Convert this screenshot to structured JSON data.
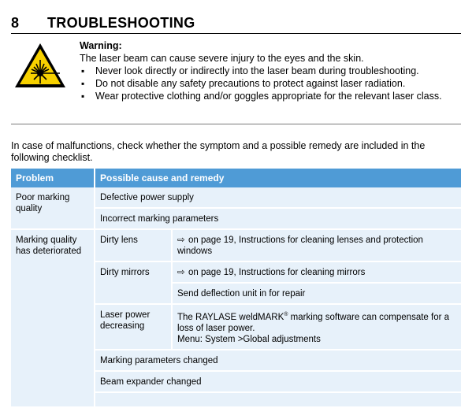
{
  "section": {
    "number": "8",
    "title": "TROUBLESHOOTING"
  },
  "warning": {
    "title": "Warning:",
    "text": "The laser beam can cause severe injury to the eyes and the skin.",
    "bullets": [
      "Never look directly or indirectly into the laser beam during troubleshooting.",
      "Do not disable any safety precautions to protect against laser radiation.",
      "Wear protective clothing and/or goggles appropriate for the relevant laser class."
    ],
    "icon": "laser-hazard-icon"
  },
  "intro": "In case of malfunctions, check whether the symptom and a possible remedy are included in the following checklist.",
  "table": {
    "headers": [
      "Problem",
      "Possible cause and remedy"
    ],
    "header_color": "#4f9bd6",
    "row_color": "#e7f1fa",
    "problems": [
      "Poor marking quality",
      "Marking quality has deteriorated"
    ],
    "rows": [
      {
        "cause": "Defective power supply"
      },
      {
        "cause": "Incorrect marking parameters"
      },
      {
        "cause": "Dirty lens",
        "remedy": "on page 19, Instructions for cleaning lenses and protection windows"
      },
      {
        "cause": "Dirty mirrors",
        "remedy": "on page 19, Instructions for cleaning mirrors"
      },
      {
        "remedy": "Send deflection unit in for repair"
      },
      {
        "cause": "Laser power decreasing",
        "remedy_line1": "The RAYLASE weldMARK",
        "remedy_sup": "®",
        "remedy_line1b": " marking software can compensate for a loss of laser power.",
        "remedy_line2": "Menu: System >Global adjustments"
      },
      {
        "cause": "Marking parameters changed"
      },
      {
        "cause": "Beam expander changed"
      }
    ],
    "arrow": "⇨"
  }
}
